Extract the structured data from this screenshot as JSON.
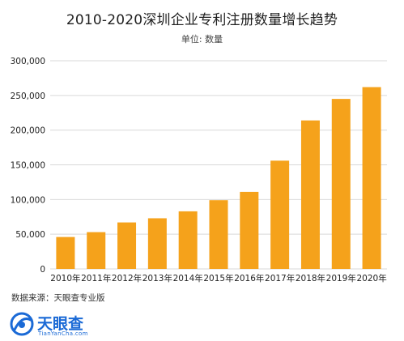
{
  "header": {
    "title": "2010-2020深圳企业专利注册数量增长趋势",
    "unit": "单位: 数量"
  },
  "footer": {
    "source": "数据来源：天眼查专业版",
    "logo_text": "天眼查",
    "logo_sub": "TianYanCha.com",
    "logo_icon": "eye-logo-icon"
  },
  "colors": {
    "bar": "#F5A21B",
    "grid": "#d9d9d9",
    "text": "#222222",
    "logo": "#1b6ad6"
  },
  "chart_data": {
    "type": "bar",
    "title": "2010-2020深圳企业专利注册数量增长趋势",
    "subtitle": "单位: 数量",
    "xlabel": "",
    "ylabel": "",
    "categories": [
      "2010年",
      "2011年",
      "2012年",
      "2013年",
      "2014年",
      "2015年",
      "2016年",
      "2017年",
      "2018年",
      "2019年",
      "2020年"
    ],
    "values": [
      46000,
      53000,
      67000,
      73000,
      83000,
      99000,
      111000,
      156000,
      214000,
      245000,
      262000
    ],
    "ylim": [
      0,
      300000
    ],
    "yticks": [
      0,
      50000,
      100000,
      150000,
      200000,
      250000,
      300000
    ],
    "ytick_labels": [
      "0",
      "50,000",
      "100,000",
      "150,000",
      "200,000",
      "250,000",
      "300,000"
    ],
    "grid": true,
    "legend": "none"
  }
}
